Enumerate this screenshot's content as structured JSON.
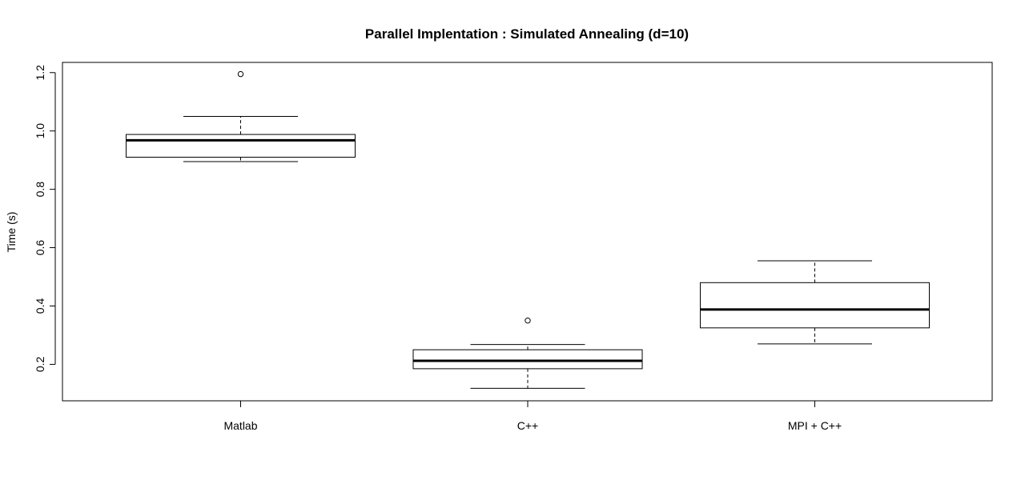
{
  "chart_data": {
    "type": "boxplot",
    "title": "Parallel Implentation : Simulated Annealing (d=10)",
    "xlabel": "",
    "ylabel": "Time (s)",
    "ylim": [
      0.075,
      1.235
    ],
    "yticks": [
      0.2,
      0.4,
      0.6,
      0.8,
      1.0,
      1.2
    ],
    "ytick_labels": [
      "0.2",
      "0.4",
      "0.6",
      "0.8",
      "1.0",
      "1.2"
    ],
    "grid": false,
    "categories": [
      "Matlab",
      "C++",
      "MPI + C++"
    ],
    "boxes": [
      {
        "category": "Matlab",
        "whisker_low": 0.895,
        "q1": 0.91,
        "median": 0.968,
        "q3": 0.988,
        "whisker_high": 1.05,
        "outliers": [
          1.195
        ]
      },
      {
        "category": "C++",
        "whisker_low": 0.118,
        "q1": 0.185,
        "median": 0.212,
        "q3": 0.25,
        "whisker_high": 0.268,
        "outliers": [
          0.35
        ]
      },
      {
        "category": "MPI + C++",
        "whisker_low": 0.27,
        "q1": 0.325,
        "median": 0.388,
        "q3": 0.48,
        "whisker_high": 0.555,
        "outliers": []
      }
    ],
    "colors": {
      "stroke": "#000000",
      "fill": "#ffffff"
    }
  }
}
